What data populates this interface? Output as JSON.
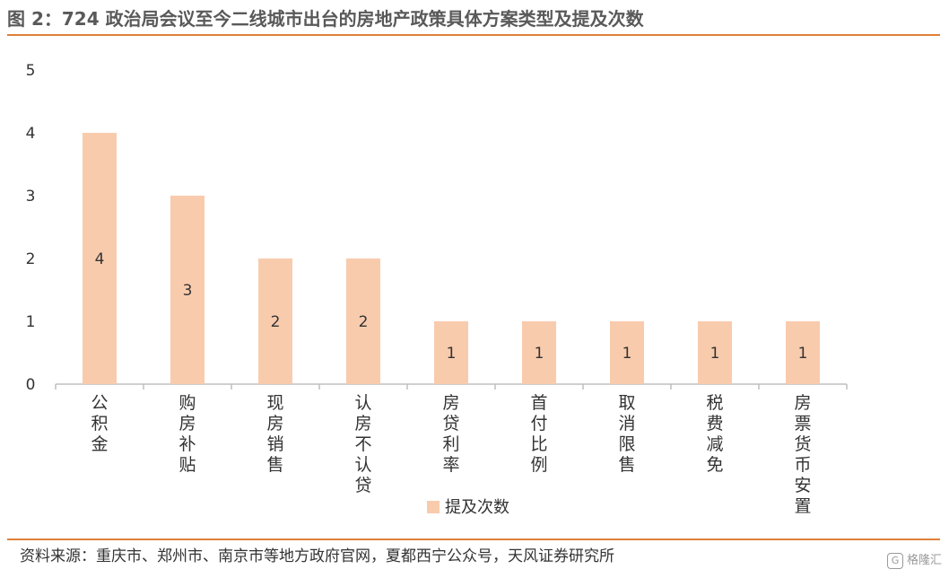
{
  "title": "图 2：724 政治局会议至今二线城市出台的房地产政策具体方案类型及提及次数",
  "source": "资料来源：重庆市、郑州市、南京市等地方政府官网，夏都西宁公众号，天风证券研究所",
  "watermark": {
    "icon": "G",
    "text": "格隆汇"
  },
  "colors": {
    "bar": "#F8CBAD",
    "accent": "#E0803A",
    "axis": "#BFBFBF",
    "text": "#333333"
  },
  "chart_data": {
    "type": "bar",
    "title": "",
    "xlabel": "",
    "ylabel": "",
    "ylim": [
      0,
      5
    ],
    "yticks": [
      "0",
      "1",
      "2",
      "3",
      "4",
      "5"
    ],
    "grid": false,
    "legend": "bottom-center",
    "categories": [
      "公积金",
      "购房补贴",
      "现房销售",
      "认房不认贷",
      "房贷利率",
      "首付比例",
      "取消限售",
      "税费减免",
      "房票货币安置"
    ],
    "series": [
      {
        "name": "提及次数",
        "values": [
          4,
          3,
          2,
          2,
          1,
          1,
          1,
          1,
          1
        ],
        "data_labels": [
          "4",
          "3",
          "2",
          "2",
          "1",
          "1",
          "1",
          "1",
          "1"
        ]
      }
    ]
  }
}
